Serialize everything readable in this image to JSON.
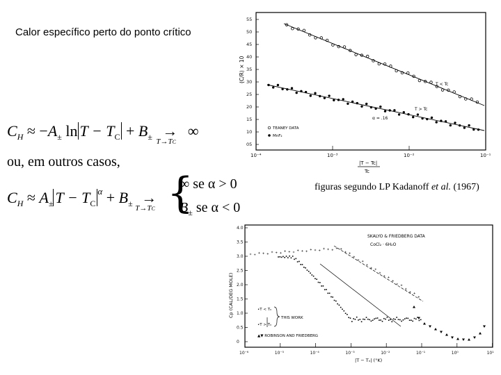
{
  "slide": {
    "title": "Calor específico perto do ponto crítico",
    "or_text": "ou, em outros casos,",
    "caption_main": "figuras segundo LP Kadanoff ",
    "caption_italic": "et al.",
    "caption_year": " (1967)"
  },
  "equations": {
    "eq1": {
      "lhs": "C",
      "lhs_sub": "H",
      "approx": "≈ −",
      "coef": "A",
      "coef_sub": "±",
      "ln": " ln",
      "abs_body": "T − T",
      "abs_sub": "C",
      "plus": " + ",
      "b": "B",
      "b_sub": "±",
      "arrow": "→",
      "limit": "T→T",
      "limit_sub": "C",
      "infinity": "∞"
    },
    "eq2": {
      "lhs": "C",
      "lhs_sub": "H",
      "approx": "≈ ",
      "coef": "A",
      "coef_sub": "±",
      "abs_body": "T − T",
      "abs_sub": "C",
      "exponent": "α",
      "plus": " + ",
      "b": "B",
      "b_sub": "±",
      "arrow": "→",
      "limit": "T→T",
      "limit_sub": "C",
      "case1": "∞  se α > 0",
      "case2_b": "B",
      "case2_b_sub": "±",
      "case2_rest": "  se α < 0"
    }
  },
  "figure_top": {
    "y_axis_label": "(C/R) × 10",
    "x_axis_label_num": "|T − Tc|",
    "x_axis_label_den": "Tc",
    "y_ticks": [
      "55",
      "50",
      "45",
      "40",
      "35",
      "30",
      "25",
      "20",
      "15",
      "10",
      "05"
    ],
    "x_ticks": [
      "10⁻⁴",
      "10⁻³",
      "10⁻²",
      "10⁻¹"
    ],
    "legend_line1": "TEANEY DATA",
    "legend_line2": "MnF₂",
    "label_upper": "T < Tc",
    "label_lower": "T > Tc",
    "label_alpha": "α = .16"
  },
  "figure_bottom": {
    "header1": "SKALYO & FRIEDBERG DATA",
    "header2": "CoCl₂ · 6H₂O",
    "y_axis_label": "Cp  (CAL/DEG MOLE)",
    "x_axis_label": "|T − Tₙ| (°K)",
    "y_ticks": [
      "4.0",
      "3.5",
      "3.0",
      "2.5",
      "2.0",
      "1.5",
      "1.0",
      "0.5",
      "0"
    ],
    "x_ticks": [
      "10⁻⁶",
      "10⁻⁵",
      "10⁻⁴",
      "10⁻³",
      "10⁻²",
      "10⁻¹",
      "10⁰",
      "10¹"
    ],
    "legend1": "•T < Tₙ",
    "legend2": "•T > Tₙ",
    "legend_bracket": "THIS WORK",
    "legend3": "▲▼ ROBINSON AND FRIEDBERG"
  }
}
